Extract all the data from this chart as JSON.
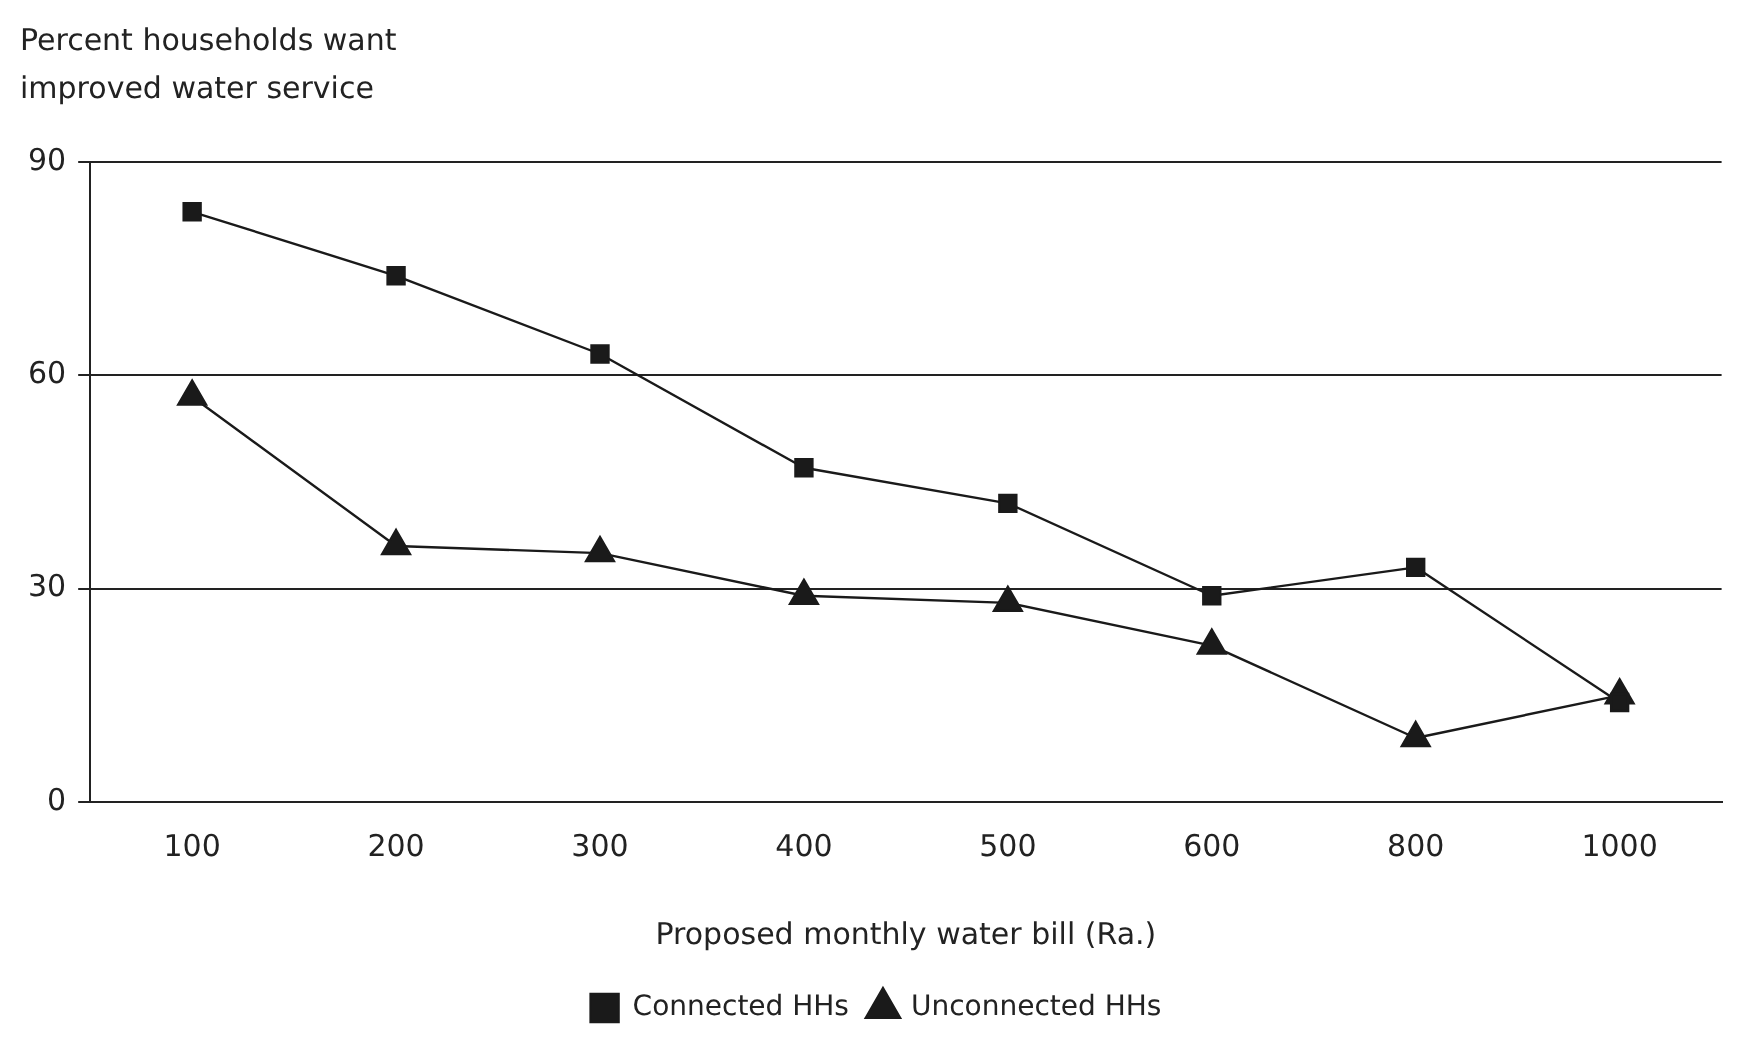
{
  "chart_data": {
    "type": "line",
    "ylabel": "Percent households want\nimproved water service",
    "xlabel": "Proposed monthly water bill (Ra.)",
    "categories": [
      "100",
      "200",
      "300",
      "400",
      "500",
      "600",
      "800",
      "1000"
    ],
    "series": [
      {
        "name": "Connected HHs",
        "color": "#1a1a1a",
        "marker": "square",
        "values": [
          83,
          74,
          63,
          47,
          42,
          29,
          33,
          14
        ]
      },
      {
        "name": "Unconnected HHs",
        "color": "#1a1a1a",
        "marker": "triangle",
        "values": [
          57,
          36,
          35,
          29,
          28,
          22,
          9,
          15
        ]
      }
    ],
    "ylim": [
      0,
      90
    ],
    "yticks": [
      0,
      30,
      60,
      90
    ],
    "grid": "y",
    "legend": "bottom"
  }
}
